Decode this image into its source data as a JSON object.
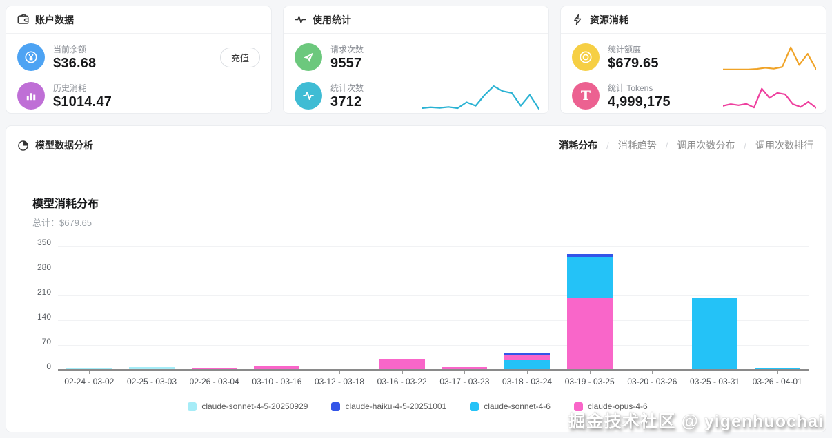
{
  "cards": {
    "account": {
      "title": "账户数据",
      "recharge_label": "充值",
      "stats": [
        {
          "label": "当前余额",
          "value": "$36.68",
          "icon": "yen-coin-icon",
          "color": "#4da3f3"
        },
        {
          "label": "历史消耗",
          "value": "$1014.47",
          "icon": "bar-chart-icon",
          "color": "#bf6fd6"
        }
      ]
    },
    "usage": {
      "title": "使用统计",
      "stats": [
        {
          "label": "请求次数",
          "value": "9557",
          "icon": "send-icon",
          "color": "#6cc87d"
        },
        {
          "label": "统计次数",
          "value": "3712",
          "icon": "pulse-icon",
          "color": "#3fbcd4"
        }
      ],
      "sparkline": {
        "color": "#29b2d3",
        "values": [
          10,
          13,
          11,
          14,
          10,
          30,
          18,
          55,
          85,
          68,
          62,
          18,
          55,
          8
        ]
      }
    },
    "resource": {
      "title": "资源消耗",
      "stats": [
        {
          "label": "统计额度",
          "value": "$679.65",
          "icon": "coin-icon",
          "color": "#f6cf44",
          "sparkline": {
            "color": "#f0a327",
            "values": [
              6,
              6,
              6,
              6,
              8,
              12,
              9,
              15,
              85,
              22,
              62,
              7
            ]
          }
        },
        {
          "label": "统计 Tokens",
          "value": "4,999,175",
          "icon": "token-icon",
          "color": "#ec6191",
          "sparkline": {
            "color": "#ee3f9e",
            "values": [
              14,
              20,
              16,
              21,
              8,
              75,
              42,
              60,
              55,
              20,
              10,
              28,
              7
            ]
          }
        }
      ]
    }
  },
  "analysis": {
    "title": "模型数据分析",
    "tabs": [
      {
        "label": "消耗分布",
        "active": true
      },
      {
        "label": "消耗趋势",
        "active": false
      },
      {
        "label": "调用次数分布",
        "active": false
      },
      {
        "label": "调用次数排行",
        "active": false
      }
    ]
  },
  "chart_data": {
    "type": "bar",
    "stacked": true,
    "title": "模型消耗分布",
    "subtitle_label": "总计：",
    "total": "$679.65",
    "ylim": [
      0,
      350
    ],
    "yticks": [
      0,
      70,
      140,
      210,
      280,
      350
    ],
    "grid": true,
    "legend_position": "bottom",
    "series": [
      {
        "name": "claude-sonnet-4-5-20250929",
        "color": "#a6ecf7"
      },
      {
        "name": "claude-haiku-4-5-20251001",
        "color": "#3355e8"
      },
      {
        "name": "claude-sonnet-4-6",
        "color": "#24c2f7"
      },
      {
        "name": "claude-opus-4-6",
        "color": "#f966c9"
      }
    ],
    "categories": [
      "02-24 - 03-02",
      "02-25 - 03-03",
      "02-26 - 03-04",
      "03-10 - 03-16",
      "03-12 - 03-18",
      "03-16 - 03-22",
      "03-17 - 03-23",
      "03-18 - 03-24",
      "03-19 - 03-25",
      "03-20 - 03-26",
      "03-25 - 03-31",
      "03-26 - 04-01"
    ],
    "bars": [
      {
        "category": "02-24 - 03-02",
        "segments": [
          {
            "series": "claude-sonnet-4-5-20250929",
            "value": 7
          }
        ]
      },
      {
        "category": "02-25 - 03-03",
        "segments": [
          {
            "series": "claude-sonnet-4-5-20250929",
            "value": 9
          }
        ]
      },
      {
        "category": "02-26 - 03-04",
        "segments": [
          {
            "series": "claude-opus-4-6",
            "value": 7
          }
        ]
      },
      {
        "category": "03-10 - 03-16",
        "segments": [
          {
            "series": "claude-opus-4-6",
            "value": 11
          }
        ]
      },
      {
        "category": "03-12 - 03-18",
        "segments": [
          {
            "series": "claude-opus-4-6",
            "value": 3
          }
        ]
      },
      {
        "category": "03-16 - 03-22",
        "segments": [
          {
            "series": "claude-opus-4-6",
            "value": 33
          }
        ]
      },
      {
        "category": "03-17 - 03-23",
        "segments": [
          {
            "series": "claude-opus-4-6",
            "value": 10
          }
        ]
      },
      {
        "category": "03-18 - 03-24",
        "segments": [
          {
            "series": "claude-sonnet-4-6",
            "value": 30
          },
          {
            "series": "claude-opus-4-6",
            "value": 12
          },
          {
            "series": "claude-haiku-4-5-20251001",
            "value": 8
          }
        ]
      },
      {
        "category": "03-19 - 03-25",
        "segments": [
          {
            "series": "claude-opus-4-6",
            "value": 204
          },
          {
            "series": "claude-sonnet-4-6",
            "value": 117
          },
          {
            "series": "claude-haiku-4-5-20251001",
            "value": 8
          }
        ]
      },
      {
        "category": "03-20 - 03-26",
        "segments": [
          {
            "series": "claude-haiku-4-5-20251001",
            "value": 2
          }
        ]
      },
      {
        "category": "03-25 - 03-31",
        "segments": [
          {
            "series": "claude-sonnet-4-6",
            "value": 207
          }
        ]
      },
      {
        "category": "03-26 - 04-01",
        "segments": [
          {
            "series": "claude-sonnet-4-6",
            "value": 8
          }
        ]
      }
    ]
  },
  "watermark": "掘金技术社区 @ yigenhuochai"
}
